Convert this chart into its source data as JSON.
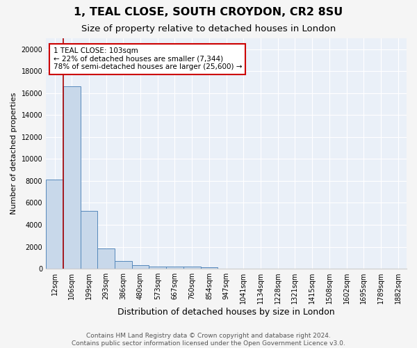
{
  "title1": "1, TEAL CLOSE, SOUTH CROYDON, CR2 8SU",
  "title2": "Size of property relative to detached houses in London",
  "xlabel": "Distribution of detached houses by size in London",
  "ylabel": "Number of detached properties",
  "bin_labels": [
    "12sqm",
    "106sqm",
    "199sqm",
    "293sqm",
    "386sqm",
    "480sqm",
    "573sqm",
    "667sqm",
    "760sqm",
    "854sqm",
    "947sqm",
    "1041sqm",
    "1134sqm",
    "1228sqm",
    "1321sqm",
    "1415sqm",
    "1508sqm",
    "1602sqm",
    "1695sqm",
    "1789sqm",
    "1882sqm"
  ],
  "bar_heights": [
    8100,
    16600,
    5300,
    1850,
    700,
    300,
    220,
    190,
    170,
    150,
    0,
    0,
    0,
    0,
    0,
    0,
    0,
    0,
    0,
    0,
    0
  ],
  "bar_color": "#c8d8ea",
  "bar_edge_color": "#5588bb",
  "background_color": "#eaf0f8",
  "grid_color": "#ffffff",
  "vline_color": "#aa0000",
  "annotation_text": "1 TEAL CLOSE: 103sqm\n← 22% of detached houses are smaller (7,344)\n78% of semi-detached houses are larger (25,600) →",
  "annotation_box_color": "#ffffff",
  "annotation_box_edge": "#cc0000",
  "ylim": [
    0,
    21000
  ],
  "yticks": [
    0,
    2000,
    4000,
    6000,
    8000,
    10000,
    12000,
    14000,
    16000,
    18000,
    20000
  ],
  "footer_text": "Contains HM Land Registry data © Crown copyright and database right 2024.\nContains public sector information licensed under the Open Government Licence v3.0.",
  "title1_fontsize": 11.5,
  "title2_fontsize": 9.5,
  "xlabel_fontsize": 9,
  "ylabel_fontsize": 8,
  "tick_fontsize": 7,
  "footer_fontsize": 6.5
}
